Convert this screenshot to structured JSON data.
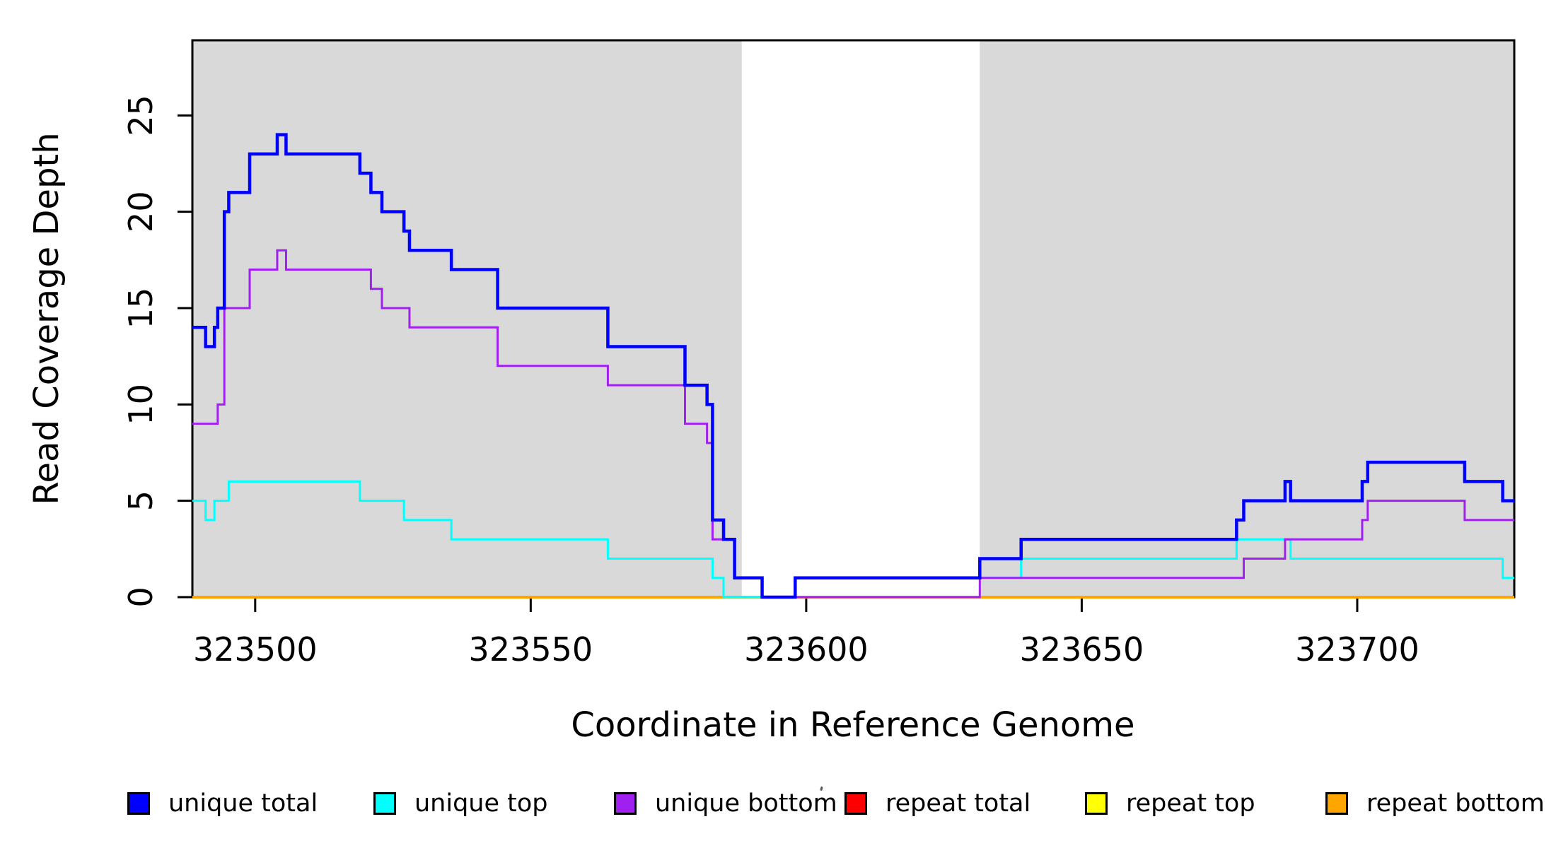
{
  "y_axis": {
    "title": "Read Coverage Depth",
    "ticks": [
      0,
      5,
      10,
      15,
      20,
      25
    ]
  },
  "x_axis": {
    "title": "Coordinate in Reference Genome",
    "ticks": [
      323500,
      323550,
      323600,
      323650,
      323700
    ]
  },
  "legend": {
    "items": [
      {
        "label": "unique total",
        "color": "#0000FF"
      },
      {
        "label": "unique top",
        "color": "#00FFFF"
      },
      {
        "label": "unique bottom",
        "color": "#A020F0"
      },
      {
        "label": "repeat total",
        "color": "#FF0000"
      },
      {
        "label": "repeat top",
        "color": "#FFFF00"
      },
      {
        "label": "repeat bottom",
        "color": "#FFA500"
      }
    ]
  },
  "colors": {
    "shaded_region": "#D9D9D9",
    "plot_background": "#FFFFFF",
    "axis": "#000000"
  },
  "chart_data": {
    "type": "line",
    "step": true,
    "title": "",
    "xlabel": "Coordinate in Reference Genome",
    "ylabel": "Read Coverage Depth",
    "xlim": [
      323488.6,
      323728.5
    ],
    "ylim": [
      0,
      28.9
    ],
    "grid": false,
    "legend_position": "bottom",
    "shaded_regions": [
      {
        "x0": 323488.6,
        "x1": 323588.3
      },
      {
        "x0": 323631.5,
        "x1": 323728.5
      }
    ],
    "series": [
      {
        "name": "repeat total",
        "color": "#FF0000",
        "width": 4,
        "points": [
          [
            323488.6,
            0
          ],
          [
            323728.5,
            0
          ]
        ]
      },
      {
        "name": "repeat top",
        "color": "#FFFF00",
        "width": 3.5,
        "points": [
          [
            323488.6,
            0
          ],
          [
            323728.5,
            0
          ]
        ]
      },
      {
        "name": "repeat bottom",
        "color": "#FFA500",
        "width": 4,
        "points": [
          [
            323488.6,
            0
          ],
          [
            323728.5,
            0
          ]
        ]
      },
      {
        "name": "unique top",
        "color": "#00FFFF",
        "width": 3,
        "points": [
          [
            323488.6,
            5
          ],
          [
            323491,
            4
          ],
          [
            323492.6,
            5
          ],
          [
            323495.2,
            6
          ],
          [
            323519,
            5
          ],
          [
            323527,
            4
          ],
          [
            323535.6,
            3
          ],
          [
            323564,
            2
          ],
          [
            323583,
            1
          ],
          [
            323585,
            0
          ],
          [
            323598,
            1
          ],
          [
            323639,
            2
          ],
          [
            323678.1,
            3
          ],
          [
            323687.9,
            2
          ],
          [
            323726.4,
            1
          ],
          [
            323728.5,
            1
          ]
        ]
      },
      {
        "name": "unique bottom",
        "color": "#A020F0",
        "width": 3,
        "points": [
          [
            323488.6,
            9
          ],
          [
            323493.2,
            10
          ],
          [
            323494.4,
            15
          ],
          [
            323499,
            17
          ],
          [
            323504,
            18
          ],
          [
            323505.6,
            17
          ],
          [
            323521,
            16
          ],
          [
            323523,
            15
          ],
          [
            323528,
            14
          ],
          [
            323544,
            12
          ],
          [
            323564,
            11
          ],
          [
            323578,
            9
          ],
          [
            323582,
            8
          ],
          [
            323583,
            3
          ],
          [
            323587,
            1
          ],
          [
            323592,
            0
          ],
          [
            323631.5,
            1
          ],
          [
            323679.4,
            2
          ],
          [
            323686.9,
            3
          ],
          [
            323700.9,
            4
          ],
          [
            323701.9,
            5
          ],
          [
            323719.5,
            4
          ],
          [
            323728.5,
            4
          ]
        ]
      },
      {
        "name": "unique total",
        "color": "#0000FF",
        "width": 4.5,
        "points": [
          [
            323488.6,
            14
          ],
          [
            323491,
            13
          ],
          [
            323492.6,
            14
          ],
          [
            323493.2,
            15
          ],
          [
            323494.4,
            20
          ],
          [
            323495.2,
            21
          ],
          [
            323499,
            23
          ],
          [
            323504,
            24
          ],
          [
            323505.6,
            23
          ],
          [
            323519,
            22
          ],
          [
            323521,
            21
          ],
          [
            323523,
            20
          ],
          [
            323527,
            19
          ],
          [
            323528,
            18
          ],
          [
            323535.6,
            17
          ],
          [
            323544,
            15
          ],
          [
            323564,
            13
          ],
          [
            323578,
            11
          ],
          [
            323582,
            10
          ],
          [
            323583,
            4
          ],
          [
            323585,
            3
          ],
          [
            323587,
            1
          ],
          [
            323592,
            0
          ],
          [
            323598,
            1
          ],
          [
            323631.5,
            2
          ],
          [
            323639,
            3
          ],
          [
            323678.1,
            4
          ],
          [
            323679.4,
            5
          ],
          [
            323686.9,
            6
          ],
          [
            323687.9,
            5
          ],
          [
            323700.9,
            6
          ],
          [
            323701.9,
            7
          ],
          [
            323719.5,
            6
          ],
          [
            323726.4,
            5
          ],
          [
            323728.5,
            5
          ]
        ]
      }
    ]
  }
}
